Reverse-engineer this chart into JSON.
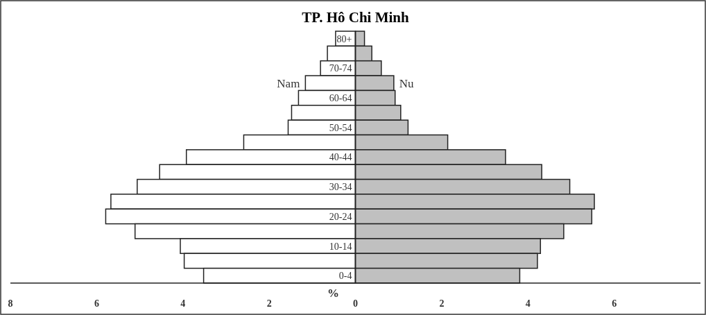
{
  "chart_data": {
    "type": "bar",
    "title": "TP. Hô Chi Minh",
    "xlabel": "%",
    "orientation": "horizontal",
    "stacked": true,
    "categories": [
      "80+",
      null,
      "70-74",
      null,
      "60-64",
      null,
      "50-54",
      null,
      "40-44",
      null,
      "30-34",
      null,
      "20-24",
      null,
      "10-14",
      null,
      "0-4"
    ],
    "series": [
      {
        "name": "Nam",
        "color": "#ffffff",
        "values": [
          -0.46,
          -0.65,
          -0.81,
          -1.16,
          -1.32,
          -1.48,
          -1.56,
          -2.59,
          -3.92,
          -4.54,
          -5.06,
          -5.67,
          -5.79,
          -5.11,
          -4.06,
          -3.97,
          -3.52
        ]
      },
      {
        "name": "Nu",
        "color": "#c0c0c0",
        "values": [
          0.21,
          0.38,
          0.6,
          0.89,
          0.92,
          1.05,
          1.22,
          2.14,
          3.48,
          4.32,
          4.97,
          5.54,
          5.48,
          4.83,
          4.29,
          4.22,
          3.81
        ]
      }
    ],
    "xlim": [
      -8,
      8
    ],
    "xticks": [
      {
        "value": -8,
        "label": "8"
      },
      {
        "value": -6,
        "label": "6"
      },
      {
        "value": -4,
        "label": "4"
      },
      {
        "value": -2,
        "label": "2"
      },
      0,
      2,
      4,
      6
    ],
    "grid": false
  }
}
